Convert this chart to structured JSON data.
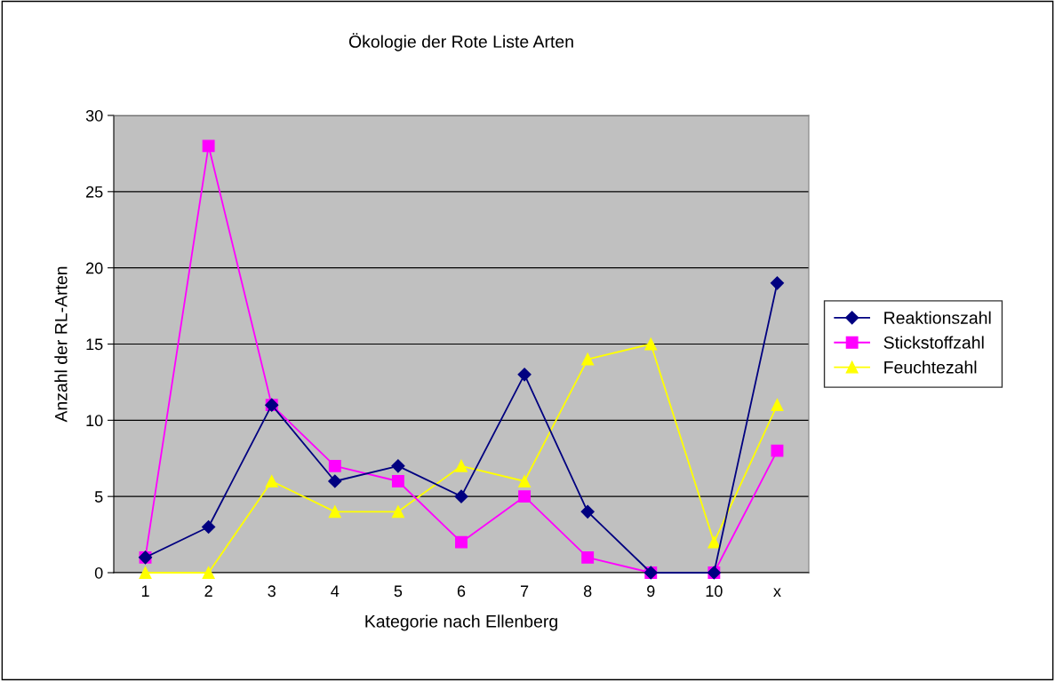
{
  "chart_data": {
    "type": "line",
    "title": "Ökologie der Rote Liste Arten",
    "xlabel": "Kategorie nach Ellenberg",
    "ylabel": "Anzahl der RL-Arten",
    "categories": [
      "1",
      "2",
      "3",
      "4",
      "5",
      "6",
      "7",
      "8",
      "9",
      "10",
      "x"
    ],
    "series": [
      {
        "name": "Reaktionszahl",
        "color": "#000080",
        "marker": "diamond",
        "values": [
          1,
          3,
          11,
          6,
          7,
          5,
          13,
          4,
          0,
          0,
          19
        ]
      },
      {
        "name": "Stickstoffzahl",
        "color": "#ff00ff",
        "marker": "square",
        "values": [
          1,
          28,
          11,
          7,
          6,
          2,
          5,
          1,
          0,
          0,
          8
        ]
      },
      {
        "name": "Feuchtezahl",
        "color": "#ffff00",
        "marker": "triangle",
        "values": [
          0,
          0,
          6,
          4,
          4,
          7,
          6,
          14,
          15,
          2,
          11
        ]
      }
    ],
    "ylim": [
      0,
      30
    ],
    "yticks": [
      0,
      5,
      10,
      15,
      20,
      25,
      30
    ],
    "grid": "y",
    "legend": "right",
    "line_style": "solid"
  }
}
